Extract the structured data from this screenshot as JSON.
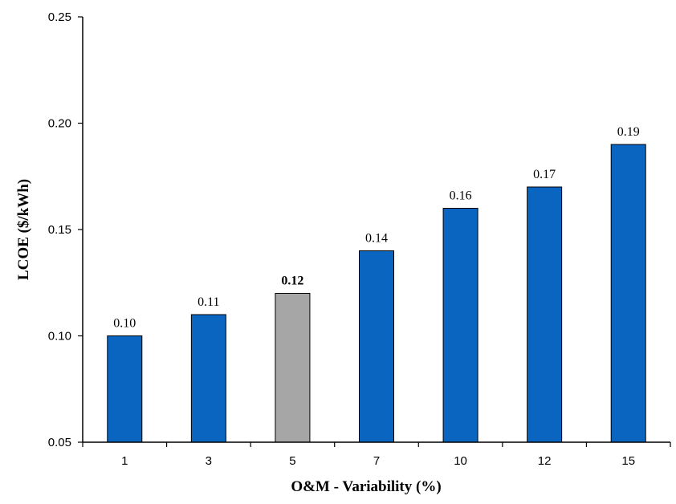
{
  "chart_data": {
    "type": "bar",
    "xlabel": "O&M - Variability (%)",
    "ylabel": "LCOE ($/kWh)",
    "categories": [
      "1",
      "3",
      "5",
      "7",
      "10",
      "12",
      "15"
    ],
    "values": [
      0.1,
      0.11,
      0.12,
      0.14,
      0.16,
      0.17,
      0.19
    ],
    "data_labels": [
      "0.10",
      "0.11",
      "0.12",
      "0.14",
      "0.16",
      "0.17",
      "0.19"
    ],
    "highlight_index": 2,
    "ylim": [
      0.05,
      0.25
    ],
    "yticks": [
      0.05,
      0.1,
      0.15,
      0.2,
      0.25
    ],
    "ytick_labels": [
      "0.05",
      "0.10",
      "0.15",
      "0.20",
      "0.25"
    ],
    "grid": false,
    "legend": "none",
    "colors": {
      "bar": "#0a65c1",
      "highlight": "#a6a6a6",
      "bar_edge": "#000000",
      "axis": "#000000"
    }
  }
}
